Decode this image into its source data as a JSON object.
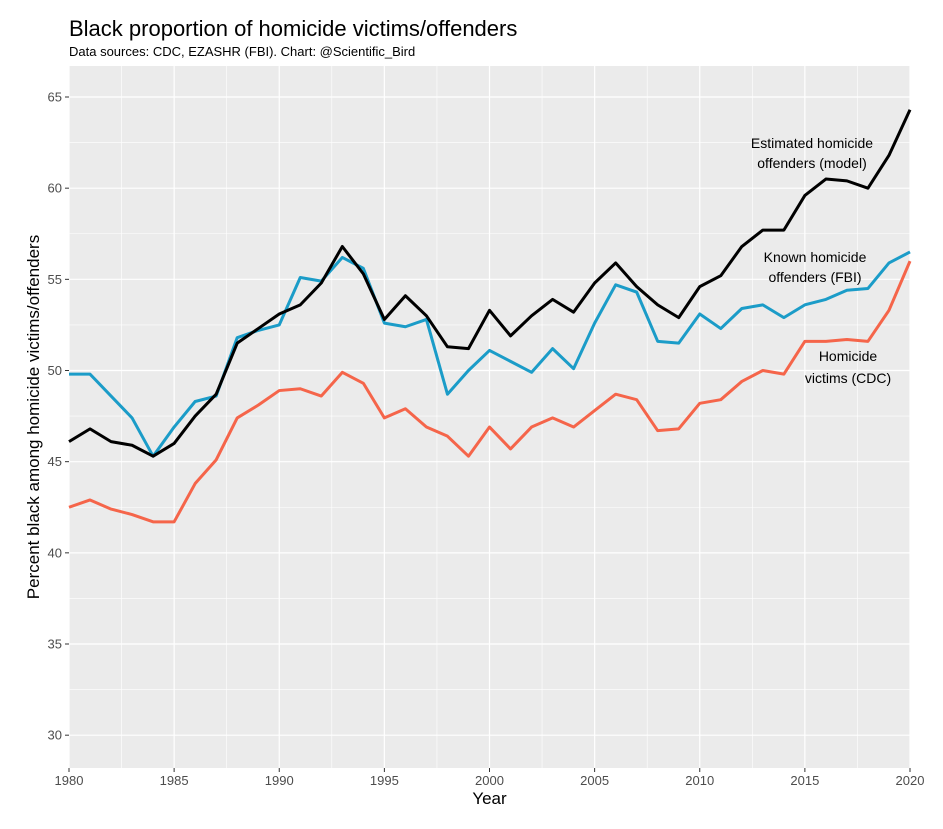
{
  "chart_data": {
    "type": "line",
    "title": "Black proportion of homicide victims/offenders",
    "subtitle": "Data sources: CDC, EZASHR (FBI). Chart: @Scientific_Bird",
    "xlabel": "Year",
    "ylabel": "Percent black among homicide victims/offenders",
    "xlim": [
      1980,
      2020
    ],
    "ylim": [
      28.2,
      66.7
    ],
    "x_ticks": [
      1980,
      1985,
      1990,
      1995,
      2000,
      2005,
      2010,
      2015,
      2020
    ],
    "y_ticks": [
      30,
      35,
      40,
      45,
      50,
      55,
      60,
      65
    ],
    "grid": true,
    "legend": "none (direct labels)",
    "x": [
      1980,
      1981,
      1982,
      1983,
      1984,
      1985,
      1986,
      1987,
      1988,
      1989,
      1990,
      1991,
      1992,
      1993,
      1994,
      1995,
      1996,
      1997,
      1998,
      1999,
      2000,
      2001,
      2002,
      2003,
      2004,
      2005,
      2006,
      2007,
      2008,
      2009,
      2010,
      2011,
      2012,
      2013,
      2014,
      2015,
      2016,
      2017,
      2018,
      2019,
      2020
    ],
    "series": [
      {
        "name": "Estimated homicide offenders (model)",
        "color": "#000000",
        "label_lines": [
          "Estimated homicide",
          "offenders (model)"
        ],
        "values": [
          46.1,
          46.8,
          46.1,
          45.9,
          45.3,
          46.0,
          47.5,
          48.7,
          51.5,
          52.3,
          53.1,
          53.6,
          54.8,
          56.8,
          55.3,
          52.8,
          54.1,
          53.0,
          51.3,
          51.2,
          53.3,
          51.9,
          53.0,
          53.9,
          53.2,
          54.8,
          55.9,
          54.6,
          53.6,
          52.9,
          54.6,
          55.2,
          56.8,
          57.7,
          57.7,
          59.6,
          60.5,
          60.4,
          60.0,
          61.8,
          64.3
        ]
      },
      {
        "name": "Known homicide offenders (FBI)",
        "color": "#1b9cc8",
        "label_lines": [
          "Known homicide",
          "offenders (FBI)"
        ],
        "values": [
          49.8,
          49.8,
          48.6,
          47.4,
          45.3,
          46.9,
          48.3,
          48.6,
          51.8,
          52.2,
          52.5,
          55.1,
          54.9,
          56.2,
          55.6,
          52.6,
          52.4,
          52.8,
          48.7,
          50.0,
          51.1,
          50.5,
          49.9,
          51.2,
          50.1,
          52.6,
          54.7,
          54.3,
          51.6,
          51.5,
          53.1,
          52.3,
          53.4,
          53.6,
          52.9,
          53.6,
          53.9,
          54.4,
          54.5,
          55.9,
          56.5
        ]
      },
      {
        "name": "Homicide victims (CDC)",
        "color": "#f5654a",
        "label_lines": [
          "Homicide",
          "victims (CDC)"
        ],
        "values": [
          42.5,
          42.9,
          42.4,
          42.1,
          41.7,
          41.7,
          43.8,
          45.1,
          47.4,
          48.1,
          48.9,
          49.0,
          48.6,
          49.9,
          49.3,
          47.4,
          47.9,
          46.9,
          46.4,
          45.3,
          46.9,
          45.7,
          46.9,
          47.4,
          46.9,
          47.8,
          48.7,
          48.4,
          46.7,
          46.8,
          48.2,
          48.4,
          49.4,
          50.0,
          49.8,
          51.6,
          51.6,
          51.7,
          51.6,
          53.3,
          56.0
        ]
      }
    ]
  }
}
